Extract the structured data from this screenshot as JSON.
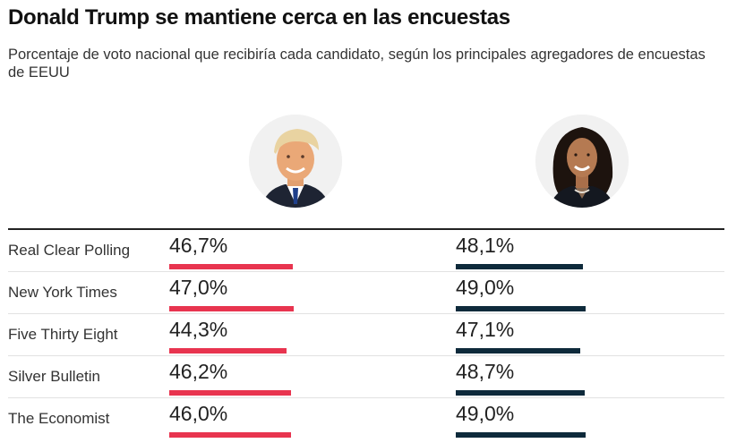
{
  "title": "Donald Trump se mantiene cerca en las encuestas",
  "subtitle": "Porcentaje de voto nacional que recibiría cada candidato, según los principales agregadores de encuestas de EEUU",
  "colors": {
    "trump": "#e8344f",
    "harris": "#0e2a3b"
  },
  "chart_data": {
    "type": "table",
    "title": "Donald Trump se mantiene cerca en las encuestas",
    "subtitle": "Porcentaje de voto nacional que recibiría cada candidato, según los principales agregadores de encuestas de EEUU",
    "categories": [
      "Real Clear Polling",
      "New York Times",
      "Five Thirty Eight",
      "Silver Bulletin",
      "The Economist"
    ],
    "series": [
      {
        "values": [
          46.7,
          47.0,
          44.3,
          46.2,
          46.0
        ],
        "labels": [
          "46,7%",
          "47,0%",
          "44,3%",
          "46,2%",
          "46,0%"
        ],
        "color": "#e8344f"
      },
      {
        "values": [
          48.1,
          49.0,
          47.1,
          48.7,
          49.0
        ],
        "labels": [
          "48,1%",
          "49,0%",
          "47,1%",
          "48,7%",
          "49,0%"
        ],
        "color": "#0e2a3b"
      }
    ]
  }
}
